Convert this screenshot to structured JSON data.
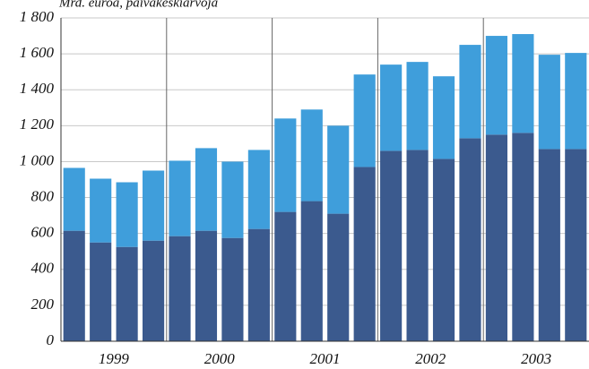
{
  "chart_data": {
    "type": "stacked_bar",
    "subtitle": "Mrd. euroa, päiväkeskiarvoja",
    "categories": [
      null,
      null,
      null,
      null,
      null,
      null,
      null,
      null,
      null,
      null,
      null,
      null,
      null,
      null,
      null,
      null,
      null,
      null,
      null,
      null
    ],
    "groups": [
      "1999",
      "2000",
      "2001",
      "2002",
      "2003"
    ],
    "series": [
      {
        "color": "#3b5a8e",
        "values": [
          615,
          550,
          525,
          560,
          585,
          615,
          575,
          625,
          720,
          780,
          710,
          970,
          1060,
          1065,
          1015,
          1130,
          1150,
          1160,
          1070,
          1070
        ]
      },
      {
        "color": "#3f9edb",
        "values": [
          350,
          355,
          360,
          390,
          420,
          460,
          425,
          440,
          520,
          510,
          490,
          515,
          480,
          490,
          460,
          520,
          550,
          550,
          525,
          535
        ]
      }
    ],
    "ylim": [
      0,
      1800
    ],
    "yticks": [
      0,
      200,
      400,
      600,
      800,
      {
        "value": 1000,
        "label": "1 000"
      },
      {
        "value": 1200,
        "label": "1 200"
      },
      {
        "value": 1400,
        "label": "1 400"
      },
      {
        "value": 1600,
        "label": "1 600"
      },
      {
        "value": 1800,
        "label": "1 800"
      }
    ],
    "grid": true
  }
}
